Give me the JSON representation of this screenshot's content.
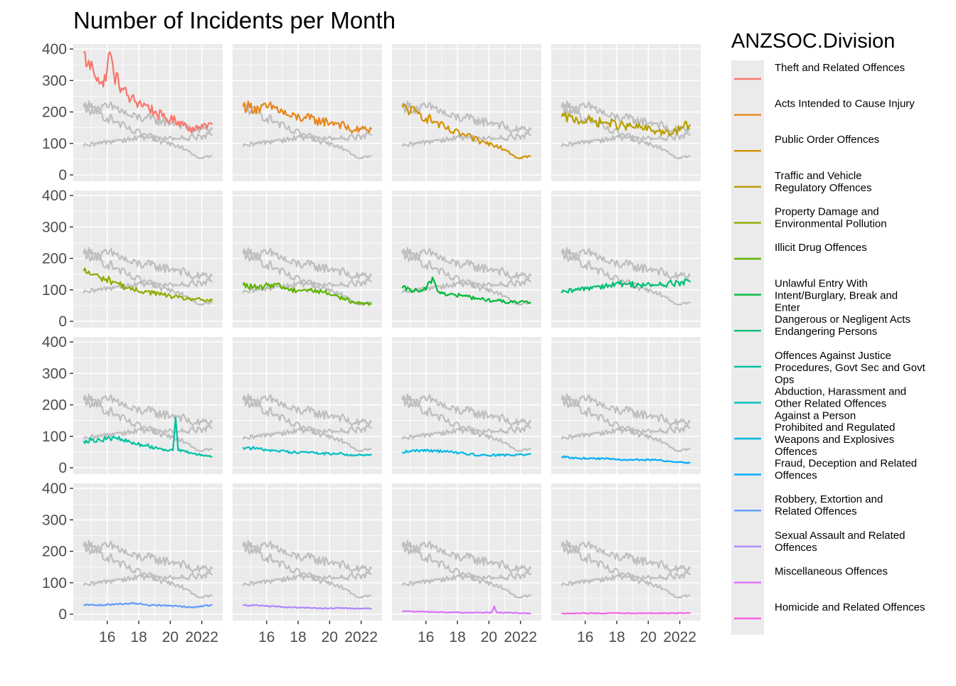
{
  "chart_data": {
    "type": "line",
    "title": "Number of Incidents per Month",
    "xlabel": "",
    "ylabel": "",
    "ylim": [
      0,
      400
    ],
    "xlim": [
      "2014-04",
      "2022-12"
    ],
    "x_tick_labels": [
      "16",
      "18",
      "20",
      "2022"
    ],
    "y_tick_labels": [
      "0",
      "100",
      "200",
      "300",
      "400"
    ],
    "grid": true,
    "facet": "panels by ANZSOC.Division, 4 x 4, other divisions drawn in grey behind each panel",
    "legend": {
      "title": "ANZSOC.Division",
      "position": "right"
    },
    "series": [
      {
        "name": "Theft and Related Offences",
        "color": "#F8766D",
        "anchors": [
          [
            "2014-07",
            390
          ],
          [
            "2014-10",
            350
          ],
          [
            "2015-02",
            340
          ],
          [
            "2015-06",
            310
          ],
          [
            "2015-10",
            280
          ],
          [
            "2016-03",
            390
          ],
          [
            "2016-06",
            320
          ],
          [
            "2017-01",
            270
          ],
          [
            "2017-07",
            240
          ],
          [
            "2018-01",
            230
          ],
          [
            "2018-07",
            220
          ],
          [
            "2019-01",
            200
          ],
          [
            "2019-07",
            185
          ],
          [
            "2020-01",
            175
          ],
          [
            "2020-07",
            170
          ],
          [
            "2021-01",
            160
          ],
          [
            "2021-07",
            140
          ],
          [
            "2022-01",
            160
          ],
          [
            "2022-09",
            160
          ]
        ]
      },
      {
        "name": "Acts Intended to Cause Injury",
        "color": "#E7861B",
        "anchors": [
          [
            "2014-07",
            220
          ],
          [
            "2015-07",
            210
          ],
          [
            "2016-07",
            215
          ],
          [
            "2017-07",
            185
          ],
          [
            "2018-07",
            180
          ],
          [
            "2019-07",
            170
          ],
          [
            "2020-07",
            165
          ],
          [
            "2021-07",
            140
          ],
          [
            "2022-01",
            145
          ],
          [
            "2022-09",
            145
          ]
        ]
      },
      {
        "name": "Public Order Offences",
        "color": "#D39200",
        "anchors": [
          [
            "2014-07",
            215
          ],
          [
            "2015-07",
            195
          ],
          [
            "2016-07",
            170
          ],
          [
            "2017-07",
            140
          ],
          [
            "2018-07",
            125
          ],
          [
            "2019-07",
            105
          ],
          [
            "2020-07",
            95
          ],
          [
            "2021-04",
            75
          ],
          [
            "2021-10",
            55
          ],
          [
            "2022-09",
            60
          ]
        ]
      },
      {
        "name": "Traffic and Vehicle Regulatory Offences",
        "color": "#B79F00",
        "anchors": [
          [
            "2014-07",
            185
          ],
          [
            "2015-07",
            175
          ],
          [
            "2016-07",
            170
          ],
          [
            "2017-07",
            165
          ],
          [
            "2018-07",
            155
          ],
          [
            "2019-07",
            150
          ],
          [
            "2020-07",
            140
          ],
          [
            "2021-07",
            130
          ],
          [
            "2022-04",
            155
          ],
          [
            "2022-09",
            160
          ]
        ]
      },
      {
        "name": "Property Damage and Environmental Pollution",
        "color": "#93AA00",
        "anchors": [
          [
            "2014-07",
            160
          ],
          [
            "2015-07",
            140
          ],
          [
            "2016-07",
            125
          ],
          [
            "2017-07",
            100
          ],
          [
            "2018-07",
            95
          ],
          [
            "2019-07",
            85
          ],
          [
            "2020-07",
            75
          ],
          [
            "2021-07",
            70
          ],
          [
            "2022-09",
            65
          ]
        ]
      },
      {
        "name": "Illicit Drug Offences",
        "color": "#5EB300",
        "anchors": [
          [
            "2014-07",
            115
          ],
          [
            "2015-07",
            105
          ],
          [
            "2016-07",
            120
          ],
          [
            "2017-07",
            100
          ],
          [
            "2018-07",
            100
          ],
          [
            "2019-07",
            95
          ],
          [
            "2020-07",
            80
          ],
          [
            "2021-07",
            60
          ],
          [
            "2022-09",
            55
          ]
        ]
      },
      {
        "name": "Unlawful Entry With Intent/Burglary, Break and Enter",
        "color": "#00BA38",
        "anchors": [
          [
            "2014-07",
            105
          ],
          [
            "2015-07",
            95
          ],
          [
            "2016-01",
            100
          ],
          [
            "2016-06",
            140
          ],
          [
            "2016-10",
            95
          ],
          [
            "2017-07",
            85
          ],
          [
            "2018-07",
            80
          ],
          [
            "2019-07",
            70
          ],
          [
            "2020-07",
            65
          ],
          [
            "2021-07",
            60
          ],
          [
            "2022-09",
            60
          ]
        ]
      },
      {
        "name": "Dangerous or Negligent Acts Endangering Persons",
        "color": "#00BF74",
        "anchors": [
          [
            "2014-07",
            90
          ],
          [
            "2015-07",
            100
          ],
          [
            "2016-07",
            110
          ],
          [
            "2017-07",
            115
          ],
          [
            "2018-07",
            120
          ],
          [
            "2019-07",
            115
          ],
          [
            "2020-07",
            115
          ],
          [
            "2021-07",
            120
          ],
          [
            "2022-09",
            125
          ]
        ]
      },
      {
        "name": "Offences Against Justice Procedures, Govt Sec and Govt Ops",
        "color": "#00C19F",
        "anchors": [
          [
            "2014-07",
            85
          ],
          [
            "2015-07",
            90
          ],
          [
            "2016-07",
            95
          ],
          [
            "2017-07",
            80
          ],
          [
            "2018-07",
            70
          ],
          [
            "2019-07",
            60
          ],
          [
            "2020-03",
            55
          ],
          [
            "2020-05",
            160
          ],
          [
            "2020-07",
            55
          ],
          [
            "2021-07",
            45
          ],
          [
            "2022-09",
            35
          ]
        ]
      },
      {
        "name": "Abduction, Harassment and Other Related Offences Against a Person",
        "color": "#00BFC4",
        "anchors": [
          [
            "2014-07",
            65
          ],
          [
            "2015-07",
            60
          ],
          [
            "2016-07",
            55
          ],
          [
            "2017-07",
            50
          ],
          [
            "2018-07",
            50
          ],
          [
            "2019-07",
            45
          ],
          [
            "2020-07",
            45
          ],
          [
            "2021-07",
            40
          ],
          [
            "2022-09",
            40
          ]
        ]
      },
      {
        "name": "Prohibited and Regulated Weapons and Explosives Offences",
        "color": "#00B9E3",
        "anchors": [
          [
            "2014-07",
            50
          ],
          [
            "2015-07",
            55
          ],
          [
            "2016-07",
            55
          ],
          [
            "2017-07",
            50
          ],
          [
            "2018-07",
            45
          ],
          [
            "2019-07",
            40
          ],
          [
            "2020-07",
            40
          ],
          [
            "2021-07",
            40
          ],
          [
            "2022-09",
            45
          ]
        ]
      },
      {
        "name": "Fraud, Deception and Related Offences",
        "color": "#00ADFA",
        "anchors": [
          [
            "2014-07",
            35
          ],
          [
            "2015-07",
            30
          ],
          [
            "2016-07",
            30
          ],
          [
            "2017-07",
            28
          ],
          [
            "2018-07",
            25
          ],
          [
            "2019-07",
            25
          ],
          [
            "2020-07",
            25
          ],
          [
            "2021-07",
            20
          ],
          [
            "2022-09",
            15
          ]
        ]
      },
      {
        "name": "Robbery, Extortion and Related Offences",
        "color": "#619CFF",
        "anchors": [
          [
            "2014-07",
            30
          ],
          [
            "2015-07",
            28
          ],
          [
            "2016-07",
            32
          ],
          [
            "2017-07",
            35
          ],
          [
            "2018-07",
            30
          ],
          [
            "2019-07",
            28
          ],
          [
            "2020-07",
            25
          ],
          [
            "2021-07",
            22
          ],
          [
            "2022-09",
            30
          ]
        ]
      },
      {
        "name": "Sexual Assault and Related Offences",
        "color": "#AE87FF",
        "anchors": [
          [
            "2014-07",
            30
          ],
          [
            "2015-07",
            27
          ],
          [
            "2016-07",
            25
          ],
          [
            "2017-07",
            22
          ],
          [
            "2018-07",
            20
          ],
          [
            "2019-07",
            18
          ],
          [
            "2020-07",
            20
          ],
          [
            "2021-07",
            18
          ],
          [
            "2022-09",
            18
          ]
        ]
      },
      {
        "name": "Miscellaneous Offences",
        "color": "#DB72FB",
        "anchors": [
          [
            "2014-07",
            10
          ],
          [
            "2015-07",
            8
          ],
          [
            "2016-07",
            7
          ],
          [
            "2017-07",
            6
          ],
          [
            "2018-07",
            5
          ],
          [
            "2019-07",
            5
          ],
          [
            "2020-03",
            5
          ],
          [
            "2020-05",
            25
          ],
          [
            "2020-07",
            5
          ],
          [
            "2021-07",
            4
          ],
          [
            "2022-09",
            3
          ]
        ]
      },
      {
        "name": "Homicide and Related Offences",
        "color": "#F564E3",
        "anchors": [
          [
            "2014-07",
            3
          ],
          [
            "2015-07",
            3
          ],
          [
            "2016-07",
            3
          ],
          [
            "2017-07",
            3
          ],
          [
            "2018-07",
            3
          ],
          [
            "2019-07",
            3
          ],
          [
            "2020-07",
            3
          ],
          [
            "2021-07",
            3
          ],
          [
            "2022-09",
            4
          ]
        ]
      }
    ]
  },
  "legend_labels": [
    [
      "Theft and Related Offences"
    ],
    [
      "Acts Intended to Cause Injury"
    ],
    [
      "Public Order Offences"
    ],
    [
      "Traffic and Vehicle",
      "Regulatory Offences"
    ],
    [
      "Property Damage and",
      "Environmental Pollution"
    ],
    [
      "Illicit Drug Offences"
    ],
    [
      "Unlawful Entry With",
      "Intent/Burglary, Break and",
      "Enter"
    ],
    [
      "Dangerous or Negligent Acts",
      "Endangering Persons"
    ],
    [
      "Offences Against Justice",
      "Procedures, Govt Sec and Govt",
      "Ops"
    ],
    [
      "Abduction, Harassment and",
      "Other Related Offences",
      "Against a Person"
    ],
    [
      "Prohibited and Regulated",
      "Weapons and Explosives",
      "Offences"
    ],
    [
      "Fraud, Deception and Related",
      "Offences"
    ],
    [
      "Robbery, Extortion and",
      "Related Offences"
    ],
    [
      "Sexual Assault and Related",
      "Offences"
    ],
    [
      "Miscellaneous Offences"
    ],
    [
      "Homicide and Related Offences"
    ]
  ]
}
